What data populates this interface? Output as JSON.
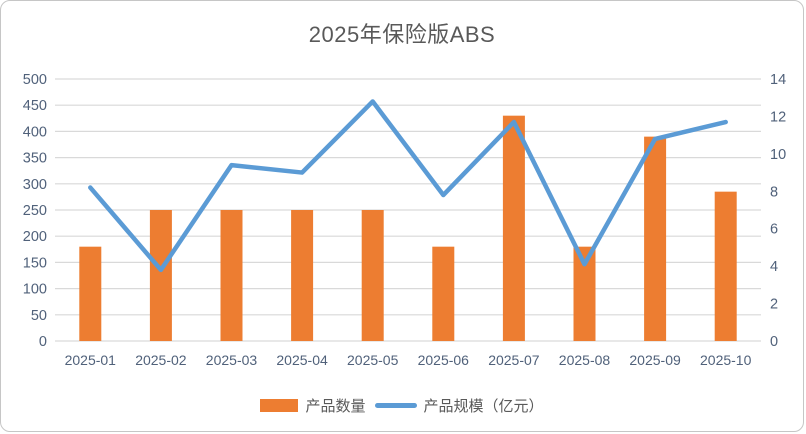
{
  "title": "2025年保险版ABS",
  "chart_data": {
    "type": "bar",
    "subtype": "combo-bar-line-dual-axis",
    "title": "2025年保险版ABS",
    "categories": [
      "2025-01",
      "2025-02",
      "2025-03",
      "2025-04",
      "2025-05",
      "2025-06",
      "2025-07",
      "2025-08",
      "2025-09",
      "2025-10"
    ],
    "series": [
      {
        "name": "产品数量",
        "type": "bar",
        "axis": "left",
        "color": "#ED7D31",
        "values": [
          180,
          250,
          250,
          250,
          250,
          180,
          430,
          180,
          390,
          285
        ]
      },
      {
        "name": "产品规模（亿元）",
        "type": "line",
        "axis": "right",
        "color": "#5B9BD5",
        "values": [
          8.2,
          3.8,
          9.4,
          9.0,
          12.8,
          7.8,
          11.7,
          4.1,
          10.8,
          11.7
        ]
      }
    ],
    "left_axis": {
      "min": 0,
      "max": 500,
      "step": 50,
      "ticks": [
        0,
        50,
        100,
        150,
        200,
        250,
        300,
        350,
        400,
        450,
        500
      ]
    },
    "right_axis": {
      "min": 0,
      "max": 14,
      "step": 2,
      "ticks": [
        0,
        2,
        4,
        6,
        8,
        10,
        12,
        14
      ]
    },
    "grid": true,
    "gridline_color": "#D9D9D9",
    "legend_position": "bottom"
  }
}
